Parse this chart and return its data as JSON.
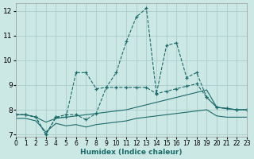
{
  "xlabel": "Humidex (Indice chaleur)",
  "bg_color": "#cce8e4",
  "grid_color": "#aacccc",
  "line_color": "#1a6b6b",
  "xlim": [
    0,
    23
  ],
  "ylim": [
    6.9,
    12.3
  ],
  "xticks": [
    0,
    1,
    2,
    3,
    4,
    5,
    6,
    7,
    8,
    9,
    10,
    11,
    12,
    13,
    14,
    15,
    16,
    17,
    18,
    19,
    20,
    21,
    22,
    23
  ],
  "yticks": [
    7,
    8,
    9,
    10,
    11,
    12
  ],
  "series": [
    {
      "name": "line1_marker",
      "x": [
        0,
        1,
        2,
        3,
        4,
        5,
        6,
        7,
        8,
        9,
        10,
        11,
        12,
        13,
        14,
        15,
        16,
        17,
        18,
        19,
        20,
        21,
        22,
        23
      ],
      "y": [
        7.8,
        7.8,
        7.7,
        7.0,
        7.7,
        7.8,
        7.8,
        7.6,
        7.85,
        8.9,
        9.5,
        10.75,
        11.75,
        12.1,
        8.65,
        10.6,
        10.7,
        9.3,
        9.5,
        8.5,
        8.1,
        8.05,
        8.0,
        8.0
      ],
      "marker": true
    },
    {
      "name": "line2_marker",
      "x": [
        0,
        1,
        2,
        3,
        4,
        5,
        6,
        7,
        8,
        9,
        10,
        11,
        12,
        13,
        14,
        15,
        16,
        17,
        18,
        19,
        20,
        21,
        22,
        23
      ],
      "y": [
        7.8,
        7.8,
        7.7,
        7.0,
        7.7,
        7.7,
        9.5,
        9.5,
        8.85,
        8.9,
        8.9,
        8.9,
        8.9,
        8.9,
        8.65,
        8.75,
        8.85,
        8.95,
        9.05,
        8.5,
        8.1,
        8.05,
        8.0,
        8.0
      ],
      "marker": true
    },
    {
      "name": "line3_smooth",
      "x": [
        0,
        1,
        2,
        3,
        4,
        5,
        6,
        7,
        8,
        9,
        10,
        11,
        12,
        13,
        14,
        15,
        16,
        17,
        18,
        19,
        20,
        21,
        22,
        23
      ],
      "y": [
        7.8,
        7.8,
        7.7,
        7.5,
        7.65,
        7.7,
        7.75,
        7.8,
        7.85,
        7.9,
        7.95,
        8.0,
        8.1,
        8.2,
        8.3,
        8.4,
        8.5,
        8.6,
        8.7,
        8.8,
        8.1,
        8.05,
        8.0,
        8.0
      ],
      "marker": false
    },
    {
      "name": "line4_smooth_low",
      "x": [
        0,
        1,
        2,
        3,
        4,
        5,
        6,
        7,
        8,
        9,
        10,
        11,
        12,
        13,
        14,
        15,
        16,
        17,
        18,
        19,
        20,
        21,
        22,
        23
      ],
      "y": [
        7.65,
        7.65,
        7.55,
        7.1,
        7.45,
        7.35,
        7.4,
        7.3,
        7.4,
        7.45,
        7.5,
        7.55,
        7.65,
        7.7,
        7.75,
        7.8,
        7.85,
        7.9,
        7.95,
        8.0,
        7.75,
        7.7,
        7.7,
        7.7
      ],
      "marker": false
    }
  ]
}
